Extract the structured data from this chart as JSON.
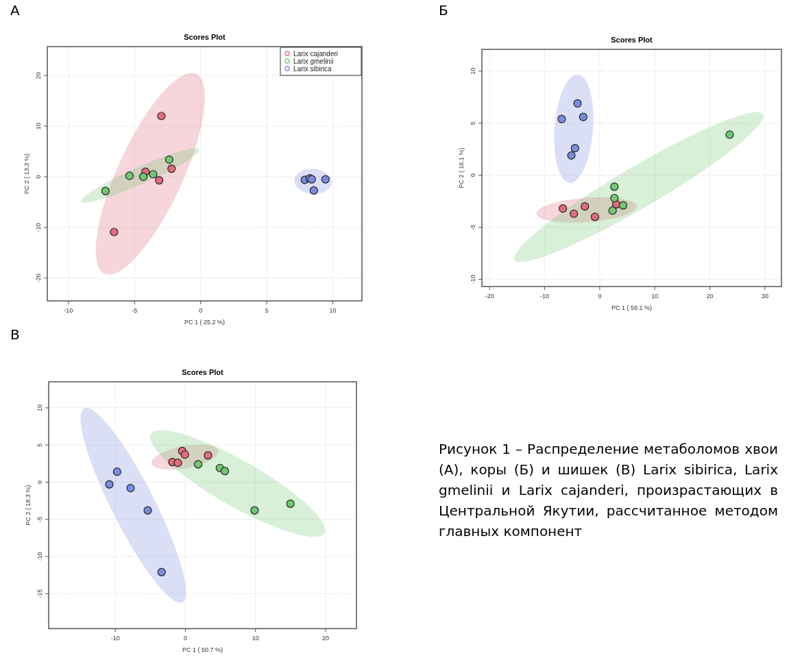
{
  "chart_data": [
    {
      "type": "scatter",
      "title": "Scores Plot",
      "xlabel": "PC 1 ( 25.2 %)",
      "ylabel": "PC 2 ( 13.3 %)",
      "annotations": [
        "А"
      ],
      "xlim": [
        -11.6,
        12.2
      ],
      "ylim": [
        -24.5,
        25.7
      ],
      "xticks": [
        -10,
        -5,
        0,
        5,
        10
      ],
      "yticks": [
        -20,
        -10,
        0,
        10,
        20
      ],
      "grid": true,
      "legend": "top right",
      "marker": "circle",
      "series": [
        {
          "name": "Larix cajanderi",
          "color": "#e06c7c",
          "x": [
            -2.97,
            -4.17,
            -2.2,
            -3.14,
            -6.55
          ],
          "values": [
            12.0,
            1.0,
            1.6,
            -0.7,
            -10.9
          ]
        },
        {
          "name": "Larix gmelinii",
          "color": "#72c772",
          "x": [
            -7.2,
            -5.38,
            -4.34,
            -3.59,
            -2.38
          ],
          "values": [
            -2.8,
            0.2,
            0.0,
            0.5,
            3.4
          ]
        },
        {
          "name": "Larix sibirica",
          "color": "#7a8ce0",
          "x": [
            7.88,
            8.25,
            8.4,
            9.44,
            8.56
          ],
          "values": [
            -0.6,
            -0.3,
            -0.5,
            -0.5,
            -2.7
          ]
        }
      ]
    },
    {
      "type": "scatter",
      "title": "Scores Plot",
      "xlabel": "PC 1 ( 59.1 %)",
      "ylabel": "PC 2 ( 16.1 %)",
      "annotations": [
        "Б"
      ],
      "xlim": [
        -21.4,
        33
      ],
      "ylim": [
        -10.7,
        12.1
      ],
      "xticks": [
        -20,
        -10,
        0,
        10,
        20,
        30
      ],
      "yticks": [
        -10,
        -5,
        0,
        5,
        10
      ],
      "grid": true,
      "marker": "circle",
      "series": [
        {
          "color": "#e06c7c",
          "x": [
            -6.69,
            -4.7,
            -2.7,
            -0.87,
            3.0
          ],
          "values": [
            -3.2,
            -3.7,
            -3.0,
            -4.0,
            -2.8
          ]
        },
        {
          "color": "#72c772",
          "x": [
            23.6,
            2.66,
            2.66,
            4.24,
            2.33
          ],
          "values": [
            3.9,
            -1.1,
            -2.2,
            -2.9,
            -3.4
          ]
        },
        {
          "color": "#7a8ce0",
          "x": [
            -4.03,
            -6.9,
            -3.0,
            -4.49,
            -5.15
          ],
          "values": [
            6.9,
            5.4,
            5.6,
            2.6,
            1.9
          ]
        }
      ]
    },
    {
      "type": "scatter",
      "title": "Scores Plot",
      "xlabel": "PC 1 ( 50.7 %)",
      "ylabel": "PC 2 ( 18.3 %)",
      "annotations": [
        "В",
        "Рисунок 1 – Распределение метаболомов хвои (А), коры (Б) и шишек (В) Larix sibirica, Larix gmelinii и Larix cajanderi, произрастающих в Центральной Якутии, рассчитанное методом главных компонент"
      ],
      "xlim": [
        -19.5,
        24.4
      ],
      "ylim": [
        -19.7,
        13.5
      ],
      "xticks": [
        -10,
        0,
        10,
        20
      ],
      "yticks": [
        -15,
        -10,
        -5,
        0,
        5,
        10
      ],
      "grid": true,
      "marker": "circle",
      "series": [
        {
          "color": "#e06c7c",
          "x": [
            -0.46,
            -0.07,
            3.22,
            -1.86,
            -1.07
          ],
          "values": [
            4.2,
            3.7,
            3.6,
            2.7,
            2.6
          ]
        },
        {
          "color": "#72c772",
          "x": [
            1.82,
            4.92,
            5.63,
            9.87,
            14.98
          ],
          "values": [
            2.4,
            1.9,
            1.5,
            -3.8,
            -2.9
          ]
        },
        {
          "color": "#7a8ce0",
          "x": [
            -9.74,
            -10.85,
            -7.82,
            -5.37,
            -3.39
          ],
          "values": [
            1.4,
            -0.3,
            -0.8,
            -3.8,
            -12.1
          ]
        }
      ]
    }
  ]
}
